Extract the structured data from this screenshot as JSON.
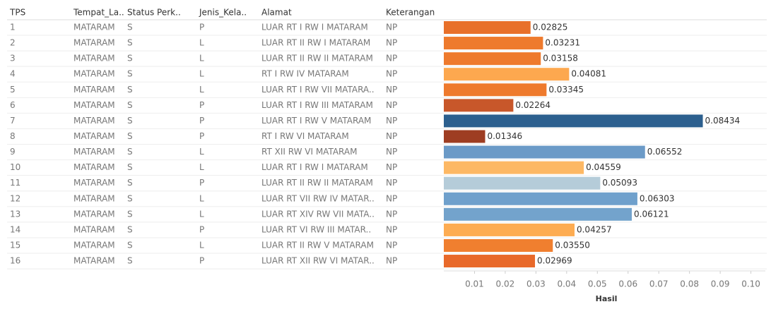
{
  "chart_data": {
    "type": "bar",
    "orientation": "horizontal",
    "columns": [
      "TPS",
      "Tempat_La..",
      "Status Perk..",
      "Jenis_Kela..",
      "Alamat",
      "Keterangan"
    ],
    "rows": [
      [
        "1",
        "MATARAM",
        "S",
        "P",
        "LUAR RT I RW I MATARAM",
        "NP"
      ],
      [
        "2",
        "MATARAM",
        "S",
        "L",
        "LUAR RT II RW I MATARAM",
        "NP"
      ],
      [
        "3",
        "MATARAM",
        "S",
        "L",
        "LUAR RT II RW II MATARAM",
        "NP"
      ],
      [
        "4",
        "MATARAM",
        "S",
        "L",
        "RT I RW IV MATARAM",
        "NP"
      ],
      [
        "5",
        "MATARAM",
        "S",
        "L",
        "LUAR RT I RW VII MATARA..",
        "NP"
      ],
      [
        "6",
        "MATARAM",
        "S",
        "P",
        "LUAR RT I RW III MATARAM",
        "NP"
      ],
      [
        "7",
        "MATARAM",
        "S",
        "P",
        "LUAR RT I RW V MATARAM",
        "NP"
      ],
      [
        "8",
        "MATARAM",
        "S",
        "P",
        "RT I RW VI MATARAM",
        "NP"
      ],
      [
        "9",
        "MATARAM",
        "S",
        "L",
        "RT XII RW VI MATARAM",
        "NP"
      ],
      [
        "10",
        "MATARAM",
        "S",
        "L",
        "LUAR RT I RW I MATARAM",
        "NP"
      ],
      [
        "11",
        "MATARAM",
        "S",
        "P",
        "LUAR RT II RW II MATARAM",
        "NP"
      ],
      [
        "12",
        "MATARAM",
        "S",
        "L",
        "LUAR RT VII RW IV MATAR..",
        "NP"
      ],
      [
        "13",
        "MATARAM",
        "S",
        "L",
        "LUAR RT XIV RW VII MATA..",
        "NP"
      ],
      [
        "14",
        "MATARAM",
        "S",
        "P",
        "LUAR RT VI RW III MATAR..",
        "NP"
      ],
      [
        "15",
        "MATARAM",
        "S",
        "L",
        "LUAR RT II RW V MATARAM",
        "NP"
      ],
      [
        "16",
        "MATARAM",
        "S",
        "P",
        "LUAR RT XII RW VI MATAR..",
        "NP"
      ]
    ],
    "values": [
      0.02825,
      0.03231,
      0.03158,
      0.04081,
      0.03345,
      0.02264,
      0.08434,
      0.01346,
      0.06552,
      0.04559,
      0.05093,
      0.06303,
      0.06121,
      0.04257,
      0.0355,
      0.02969
    ],
    "value_labels": [
      "0.02825",
      "0.03231",
      "0.03158",
      "0.04081",
      "0.03345",
      "0.02264",
      "0.08434",
      "0.01346",
      "0.06552",
      "0.04559",
      "0.05093",
      "0.06303",
      "0.06121",
      "0.04257",
      "0.03550",
      "0.02969"
    ],
    "colors": [
      "#e8702a",
      "#ee7a2d",
      "#ee7a2d",
      "#fda84f",
      "#ee7a2d",
      "#c8572a",
      "#2c5f8e",
      "#9e3d22",
      "#6b9ac7",
      "#fdb864",
      "#b5ccd9",
      "#6fa0cc",
      "#73a3cc",
      "#fdac52",
      "#f07f2f",
      "#e8692a"
    ],
    "xlim": [
      0,
      0.1047
    ],
    "xticks": [
      0.01,
      0.02,
      0.03,
      0.04,
      0.05,
      0.06,
      0.07,
      0.08,
      0.09,
      {
        "value": 0.1,
        "label": "0.10"
      }
    ],
    "xlabel": "Hasil"
  }
}
